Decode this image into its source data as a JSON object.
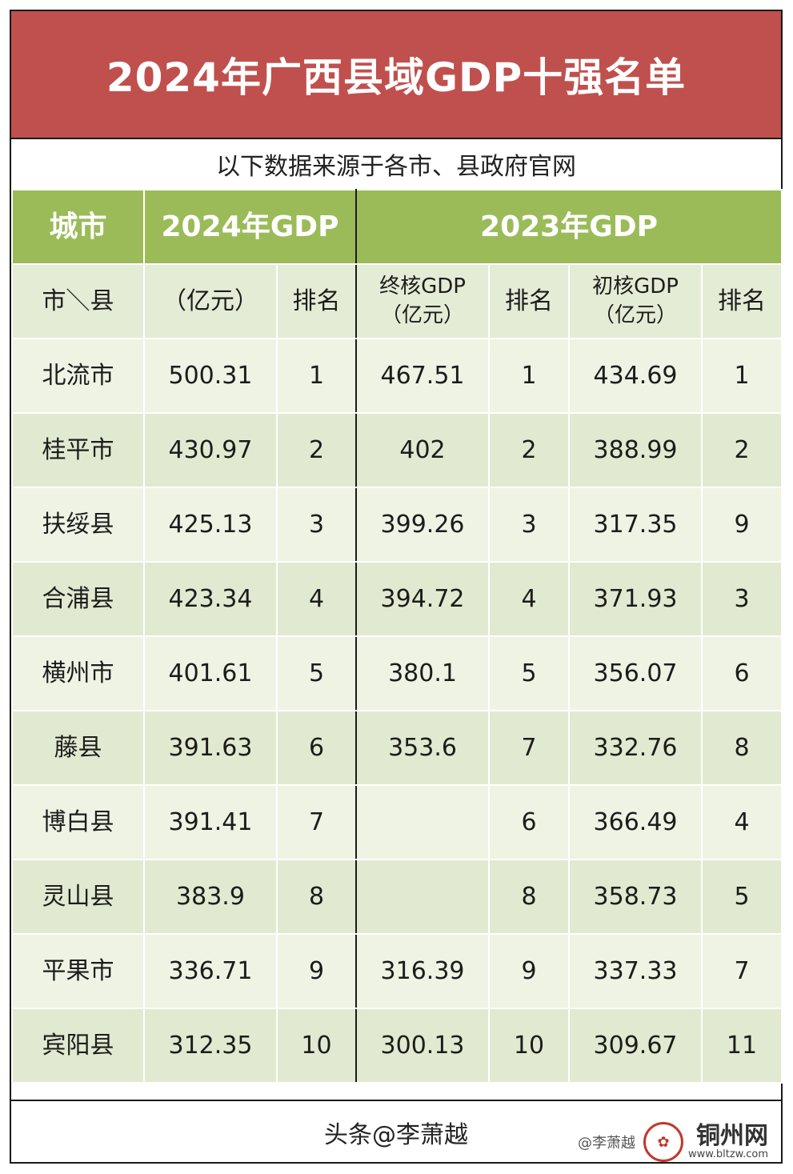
{
  "title": "2024年广西县域GDP十强名单",
  "source_note": "以下数据来源于各市、县政府官网",
  "header_top": {
    "city": "城市",
    "gdp2024": "2024年GDP",
    "gdp2023": "2023年GDP"
  },
  "header_sub": {
    "city": "市＼县",
    "gdp2024_value": "（亿元）",
    "rank": "排名",
    "final_gdp": "终核GDP\n（亿元）",
    "final_rank": "排名",
    "prelim_gdp": "初核GDP\n（亿元）",
    "prelim_rank": "排名"
  },
  "chart_data": {
    "type": "table",
    "title": "2024年广西县域GDP十强名单",
    "columns": [
      "市＼县",
      "2024年GDP（亿元）",
      "2024年排名",
      "2023年终核GDP（亿元）",
      "2023年终核排名",
      "2023年初核GDP（亿元）",
      "2023年初核排名"
    ],
    "rows": [
      {
        "name": "北流市",
        "gdp2024": "500.31",
        "rank2024": "1",
        "final2023": "467.51",
        "final_rank": "1",
        "prelim2023": "434.69",
        "prelim_rank": "1"
      },
      {
        "name": "桂平市",
        "gdp2024": "430.97",
        "rank2024": "2",
        "final2023": "402",
        "final_rank": "2",
        "prelim2023": "388.99",
        "prelim_rank": "2"
      },
      {
        "name": "扶绥县",
        "gdp2024": "425.13",
        "rank2024": "3",
        "final2023": "399.26",
        "final_rank": "3",
        "prelim2023": "317.35",
        "prelim_rank": "9"
      },
      {
        "name": "合浦县",
        "gdp2024": "423.34",
        "rank2024": "4",
        "final2023": "394.72",
        "final_rank": "4",
        "prelim2023": "371.93",
        "prelim_rank": "3"
      },
      {
        "name": "横州市",
        "gdp2024": "401.61",
        "rank2024": "5",
        "final2023": "380.1",
        "final_rank": "5",
        "prelim2023": "356.07",
        "prelim_rank": "6"
      },
      {
        "name": "藤县",
        "gdp2024": "391.63",
        "rank2024": "6",
        "final2023": "353.6",
        "final_rank": "7",
        "prelim2023": "332.76",
        "prelim_rank": "8"
      },
      {
        "name": "博白县",
        "gdp2024": "391.41",
        "rank2024": "7",
        "final2023": "",
        "final_rank": "6",
        "prelim2023": "366.49",
        "prelim_rank": "4"
      },
      {
        "name": "灵山县",
        "gdp2024": "383.9",
        "rank2024": "8",
        "final2023": "",
        "final_rank": "8",
        "prelim2023": "358.73",
        "prelim_rank": "5"
      },
      {
        "name": "平果市",
        "gdp2024": "336.71",
        "rank2024": "9",
        "final2023": "316.39",
        "final_rank": "9",
        "prelim2023": "337.33",
        "prelim_rank": "7"
      },
      {
        "name": "宾阳县",
        "gdp2024": "312.35",
        "rank2024": "10",
        "final2023": "300.13",
        "final_rank": "10",
        "prelim2023": "309.67",
        "prelim_rank": "11"
      }
    ]
  },
  "footer": "头条@李萧越",
  "watermark": {
    "handle": "@李萧越",
    "site": "铜州网",
    "url": "www.bltzw.com"
  },
  "colors": {
    "title_bg": "#c0504d",
    "header_bg": "#9bbb59",
    "subheader_bg": "#e5ecd6",
    "row_odd": "#eef3e4",
    "row_even": "#e1ead0"
  }
}
